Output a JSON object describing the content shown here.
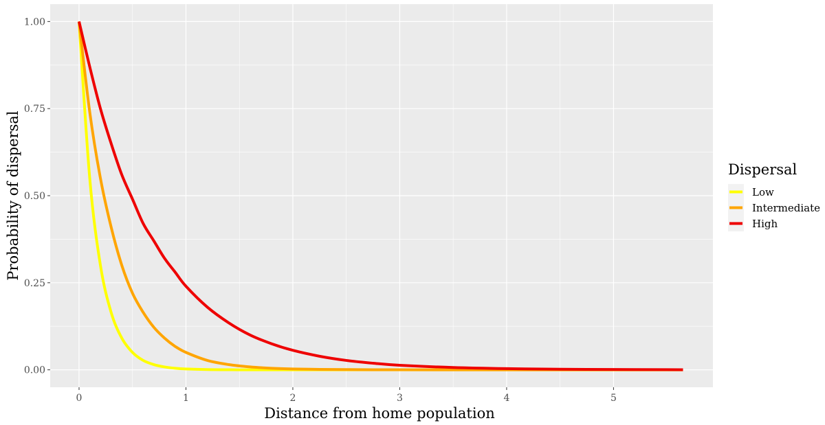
{
  "chart_data": {
    "type": "line",
    "title": "",
    "xlabel": "Distance from home population",
    "ylabel": "Probability of dispersal",
    "xlim": [
      -0.27,
      5.93
    ],
    "ylim": [
      -0.05,
      1.05
    ],
    "x_ticks": [
      0,
      1,
      2,
      3,
      4,
      5
    ],
    "y_ticks": [
      0,
      0.25,
      0.5,
      0.75,
      1
    ],
    "x_tick_labels": [
      "0",
      "1",
      "2",
      "3",
      "4",
      "5"
    ],
    "y_tick_labels": [
      "0.00",
      "0.25",
      "0.50",
      "0.75",
      "1.00"
    ],
    "grid": true,
    "legend_title": "Dispersal",
    "legend_position": "right",
    "x": [
      0,
      0.1,
      0.2,
      0.3,
      0.4,
      0.5,
      0.6,
      0.7,
      0.8,
      0.9,
      1.0,
      1.2,
      1.4,
      1.6,
      1.8,
      2.0,
      2.25,
      2.5,
      2.75,
      3.0,
      3.5,
      4.0,
      4.5,
      5.0,
      5.5,
      5.65
    ],
    "series": [
      {
        "name": "Low",
        "color": "#FFFF00",
        "values": [
          1.0,
          0.55,
          0.3,
          0.165,
          0.091,
          0.05,
          0.027,
          0.015,
          0.0083,
          0.0045,
          0.0025,
          0.00075,
          0.00023,
          7e-05,
          2e-05,
          1e-05,
          0,
          0,
          0,
          0,
          0,
          0,
          0,
          0,
          0,
          0
        ]
      },
      {
        "name": "Intermediate",
        "color": "#FFA500",
        "values": [
          1.0,
          0.74,
          0.55,
          0.41,
          0.3,
          0.22,
          0.165,
          0.122,
          0.091,
          0.067,
          0.05,
          0.027,
          0.015,
          0.0083,
          0.0045,
          0.0025,
          0.0013,
          0.0007,
          0.0003,
          0.0002,
          5e-05,
          1e-05,
          0,
          0,
          0,
          0
        ]
      },
      {
        "name": "High",
        "color": "#EE0000",
        "values": [
          1.0,
          0.87,
          0.75,
          0.65,
          0.56,
          0.49,
          0.42,
          0.37,
          0.32,
          0.28,
          0.24,
          0.18,
          0.135,
          0.1,
          0.075,
          0.056,
          0.039,
          0.027,
          0.019,
          0.013,
          0.0067,
          0.0034,
          0.0017,
          0.0009,
          0.0004,
          0.0003
        ]
      }
    ]
  }
}
